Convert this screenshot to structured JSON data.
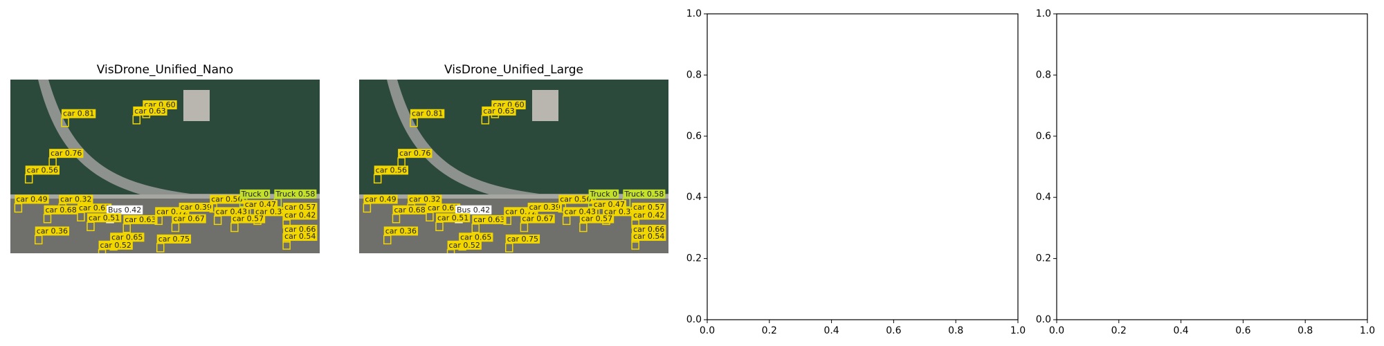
{
  "chart_data": [
    {
      "type": "image",
      "title": "VisDrone_Unified_Nano",
      "detections": [
        "car 0.81",
        "car 0.60",
        "car 0.63",
        "car 0.76",
        "car 0.56",
        "car 0.49",
        "car 0.32",
        "car 0.68",
        "car 0.61",
        "Bus 0.42",
        "car 0.51",
        "car 0.63",
        "car 0.72",
        "car 0.39",
        "car 0.56",
        "Truck 0",
        "Truck 0.58",
        "car 0.47",
        "car 0.43",
        "car 0.32",
        "car 0.67",
        "car 0.57",
        "car 0.57",
        "car 0.42",
        "car 0.36",
        "car 0.65",
        "car 0.52",
        "car 0.75",
        "car 0.66",
        "car 0.54"
      ]
    },
    {
      "type": "image",
      "title": "VisDrone_Unified_Large",
      "detections": [
        "car 0.81",
        "car 0.60",
        "car 0.63",
        "car 0.76",
        "car 0.56",
        "car 0.49",
        "car 0.32",
        "car 0.68",
        "car 0.61",
        "Bus 0.42",
        "car 0.51",
        "car 0.63",
        "car 0.72",
        "car 0.39",
        "car 0.56",
        "Truck 0",
        "Truck 0.58",
        "car 0.47",
        "car 0.43",
        "car 0.32",
        "car 0.67",
        "car 0.57",
        "car 0.57",
        "car 0.42",
        "car 0.36",
        "car 0.65",
        "car 0.52",
        "car 0.75",
        "car 0.66",
        "car 0.54"
      ]
    },
    {
      "type": "empty",
      "xlim": [
        0,
        1
      ],
      "ylim": [
        0,
        1
      ],
      "xticks": [
        {
          "value": 0,
          "label": "0.0"
        },
        {
          "value": 0.2,
          "label": "0.2"
        },
        {
          "value": 0.4,
          "label": "0.4"
        },
        {
          "value": 0.6,
          "label": "0.6"
        },
        {
          "value": 0.8,
          "label": "0.8"
        },
        {
          "value": 1,
          "label": "1.0"
        }
      ],
      "yticks": [
        {
          "value": 0,
          "label": "0.0"
        },
        {
          "value": 0.2,
          "label": "0.2"
        },
        {
          "value": 0.4,
          "label": "0.4"
        },
        {
          "value": 0.6,
          "label": "0.6"
        },
        {
          "value": 0.8,
          "label": "0.8"
        },
        {
          "value": 1,
          "label": "1.0"
        }
      ]
    },
    {
      "type": "empty",
      "xlim": [
        0,
        1
      ],
      "ylim": [
        0,
        1
      ],
      "xticks": [
        {
          "value": 0,
          "label": "0.0"
        },
        {
          "value": 0.2,
          "label": "0.2"
        },
        {
          "value": 0.4,
          "label": "0.4"
        },
        {
          "value": 0.6,
          "label": "0.6"
        },
        {
          "value": 0.8,
          "label": "0.8"
        },
        {
          "value": 1,
          "label": "1.0"
        }
      ],
      "yticks": [
        {
          "value": 0,
          "label": "0.0"
        },
        {
          "value": 0.2,
          "label": "0.2"
        },
        {
          "value": 0.4,
          "label": "0.4"
        },
        {
          "value": 0.6,
          "label": "0.6"
        },
        {
          "value": 0.8,
          "label": "0.8"
        },
        {
          "value": 1,
          "label": "1.0"
        }
      ]
    }
  ]
}
